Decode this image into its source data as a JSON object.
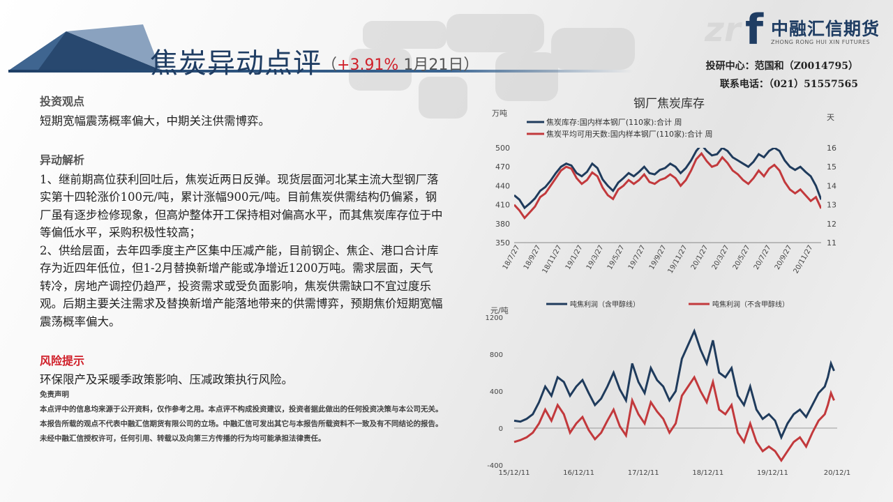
{
  "header": {
    "title": "焦炭异动点评",
    "sub_open": "（",
    "sub_change": "+3.91%",
    "sub_date": "  1月21日）"
  },
  "logo": {
    "zn": "zr",
    "f": "f",
    "cn": "中融汇信期货",
    "en": "ZHONG RONG HUI XIN FUTURES"
  },
  "contact": {
    "line1": "投研中心：范国和（Z0014795）",
    "line2": "联系电话：（021）51557565"
  },
  "view": {
    "heading": "投资观点",
    "text": "短期宽幅震荡概率偏大，中期关注供需博弈。"
  },
  "analysis": {
    "heading": "异动解析",
    "p1": "1、继前期高位获利回吐后，焦炭近两日反弹。现货层面河北某主流大型钢厂落实第十四轮涨价100元/吨，累计涨幅900元/吨。目前焦炭供需结构仍偏紧，钢厂虽有逐步检修现象，但高炉整体开工保持相对偏高水平，而其焦炭库存位于中等偏低水平，采购积极性较高；",
    "p2": "2、供给层面，去年四季度主产区集中压减产能，目前钢企、焦企、港口合计库存为近四年低位，但1-2月替换新增产能或净增近1200万吨。需求层面，天气转冷，房地产调控仍趋严，投资需求或受负面影响，焦炭供需缺口不宜过度乐观。后期主要关注需求及替换新增产能落地带来的供需博弈，预期焦价短期宽幅震荡概率偏大。"
  },
  "risk": {
    "heading": "风险提示",
    "text": "环保限产及采暖季政策影响、压减政策执行风险。"
  },
  "disclaimer": {
    "heading": "免责声明",
    "text": "本点评中的信息均来源于公开资料，仅作参考之用。本点评不构成投资建议，投资者据此做出的任何投资决策与本公司无关。本报告所载的观点不代表中融汇信期货有限公司的立场。中融汇信可发出其它与本报告所载资料不一致及有不同结论的报告。未经中融汇信授权许可，任何引用、转载以及向第三方传播的行为均可能承担法律责任。"
  },
  "colors": {
    "navy": "#1f3d63",
    "red": "#d0202a",
    "series_dark": "#1f3b5c",
    "series_red": "#c2393c"
  },
  "chart_data": [
    {
      "type": "line",
      "title": "钢厂焦炭库存",
      "ylabel": "万吨",
      "y2label": "天",
      "ylim": [
        350,
        500
      ],
      "yticks": [
        350,
        380,
        410,
        440,
        470,
        500
      ],
      "y2lim": [
        11,
        16
      ],
      "y2ticks": [
        11,
        12,
        13,
        14,
        15,
        16
      ],
      "x_ticks": [
        "18/7/27",
        "18/9/27",
        "18/11/27",
        "19/1/27",
        "19/3/27",
        "19/5/27",
        "19/7/27",
        "19/9/27",
        "19/11/27",
        "20/1/27",
        "20/3/27",
        "20/5/27",
        "20/7/27",
        "20/9/27",
        "20/11/27"
      ],
      "legend_position": "top-left",
      "series": [
        {
          "name": "焦炭库存:国内样本钢厂(110家):合计 周",
          "axis": "left",
          "x": [
            0,
            0.5,
            1,
            1.5,
            2,
            2.5,
            3,
            3.5,
            4,
            4.5,
            5,
            5.5,
            6,
            6.5,
            7,
            7.5,
            8,
            8.5,
            9,
            9.5,
            10,
            10.5,
            11,
            11.5,
            12,
            12.5,
            13,
            13.5,
            14,
            14.5,
            15,
            15.5,
            16,
            16.5,
            17,
            17.5,
            18,
            18.5,
            19,
            19.5,
            20,
            20.5,
            21,
            21.5,
            22,
            22.5,
            23,
            23.5,
            24,
            24.5,
            25,
            25.5,
            26,
            26.5,
            27,
            27.5,
            28,
            28.5,
            29,
            29.5
          ],
          "y": [
            425,
            418,
            405,
            412,
            420,
            432,
            438,
            448,
            460,
            470,
            475,
            472,
            460,
            455,
            462,
            475,
            468,
            450,
            440,
            432,
            445,
            452,
            460,
            455,
            462,
            470,
            460,
            458,
            465,
            468,
            475,
            470,
            460,
            468,
            480,
            495,
            505,
            495,
            488,
            490,
            500,
            495,
            485,
            480,
            475,
            470,
            478,
            490,
            485,
            495,
            500,
            495,
            480,
            470,
            465,
            470,
            462,
            455,
            440,
            418
          ]
        },
        {
          "name": "焦炭平均可用天数:国内样本钢厂(110家):合计 周",
          "axis": "right",
          "x": [
            0,
            0.5,
            1,
            1.5,
            2,
            2.5,
            3,
            3.5,
            4,
            4.5,
            5,
            5.5,
            6,
            6.5,
            7,
            7.5,
            8,
            8.5,
            9,
            9.5,
            10,
            10.5,
            11,
            11.5,
            12,
            12.5,
            13,
            13.5,
            14,
            14.5,
            15,
            15.5,
            16,
            16.5,
            17,
            17.5,
            18,
            18.5,
            19,
            19.5,
            20,
            20.5,
            21,
            21.5,
            22,
            22.5,
            23,
            23.5,
            24,
            24.5,
            25,
            25.5,
            26,
            26.5,
            27,
            27.5,
            28,
            28.5,
            29,
            29.5
          ],
          "y": [
            13.0,
            12.7,
            12.3,
            12.6,
            12.9,
            13.4,
            13.6,
            14.0,
            14.4,
            14.8,
            15.0,
            14.9,
            14.4,
            14.1,
            14.3,
            14.7,
            14.5,
            13.9,
            13.5,
            13.3,
            13.8,
            14.0,
            14.3,
            14.1,
            14.3,
            14.6,
            14.2,
            14.1,
            14.3,
            14.4,
            14.6,
            14.4,
            14.0,
            14.3,
            14.8,
            15.4,
            15.7,
            15.3,
            15.0,
            15.1,
            15.5,
            15.2,
            14.8,
            14.6,
            14.3,
            14.1,
            14.4,
            14.8,
            14.5,
            14.9,
            15.1,
            14.8,
            14.2,
            13.8,
            13.6,
            13.8,
            13.5,
            13.2,
            13.4,
            12.8
          ]
        }
      ]
    },
    {
      "type": "line",
      "ylabel": "元/吨",
      "ylim": [
        -400,
        1200
      ],
      "yticks": [
        -400,
        0,
        400,
        800,
        1200
      ],
      "x_ticks": [
        "15/12/11",
        "16/12/11",
        "17/12/11",
        "18/12/11",
        "19/12/11",
        "20/12/1"
      ],
      "legend_position": "top",
      "series": [
        {
          "name": "吨焦利润（含甲醇线）",
          "x": [
            0,
            0.1,
            0.2,
            0.3,
            0.4,
            0.5,
            0.6,
            0.7,
            0.8,
            0.9,
            1.0,
            1.1,
            1.2,
            1.3,
            1.4,
            1.5,
            1.6,
            1.7,
            1.8,
            1.9,
            2.0,
            2.1,
            2.2,
            2.3,
            2.4,
            2.5,
            2.6,
            2.7,
            2.8,
            2.9,
            3.0,
            3.1,
            3.2,
            3.3,
            3.4,
            3.5,
            3.6,
            3.7,
            3.8,
            3.9,
            4.0,
            4.1,
            4.2,
            4.3,
            4.4,
            4.5,
            4.6,
            4.7,
            4.8,
            4.9,
            5.0,
            5.05,
            5.1,
            5.15
          ],
          "y": [
            80,
            70,
            100,
            150,
            280,
            450,
            350,
            550,
            500,
            350,
            450,
            520,
            380,
            250,
            320,
            450,
            600,
            420,
            300,
            700,
            500,
            380,
            650,
            520,
            450,
            300,
            400,
            750,
            900,
            1050,
            850,
            700,
            950,
            600,
            550,
            650,
            350,
            250,
            450,
            200,
            100,
            150,
            80,
            -100,
            50,
            150,
            200,
            120,
            250,
            380,
            450,
            550,
            700,
            620
          ]
        },
        {
          "name": "吨焦利润（不含甲醇线）",
          "x": [
            0,
            0.1,
            0.2,
            0.3,
            0.4,
            0.5,
            0.6,
            0.7,
            0.8,
            0.9,
            1.0,
            1.1,
            1.2,
            1.3,
            1.4,
            1.5,
            1.6,
            1.7,
            1.8,
            1.9,
            2.0,
            2.1,
            2.2,
            2.3,
            2.4,
            2.5,
            2.6,
            2.7,
            2.8,
            2.9,
            3.0,
            3.1,
            3.2,
            3.3,
            3.4,
            3.5,
            3.6,
            3.7,
            3.8,
            3.9,
            4.0,
            4.1,
            4.2,
            4.3,
            4.4,
            4.5,
            4.6,
            4.7,
            4.8,
            4.9,
            5.0,
            5.05,
            5.1,
            5.15
          ],
          "y": [
            -150,
            -130,
            -100,
            -50,
            50,
            200,
            80,
            250,
            150,
            -50,
            50,
            120,
            -20,
            -120,
            -50,
            80,
            200,
            20,
            -80,
            300,
            150,
            50,
            280,
            180,
            100,
            -50,
            50,
            350,
            450,
            550,
            400,
            280,
            500,
            200,
            150,
            250,
            -50,
            -150,
            50,
            -150,
            -250,
            -200,
            -250,
            -350,
            -250,
            -150,
            -100,
            -200,
            -50,
            80,
            150,
            250,
            380,
            300
          ]
        }
      ]
    }
  ]
}
